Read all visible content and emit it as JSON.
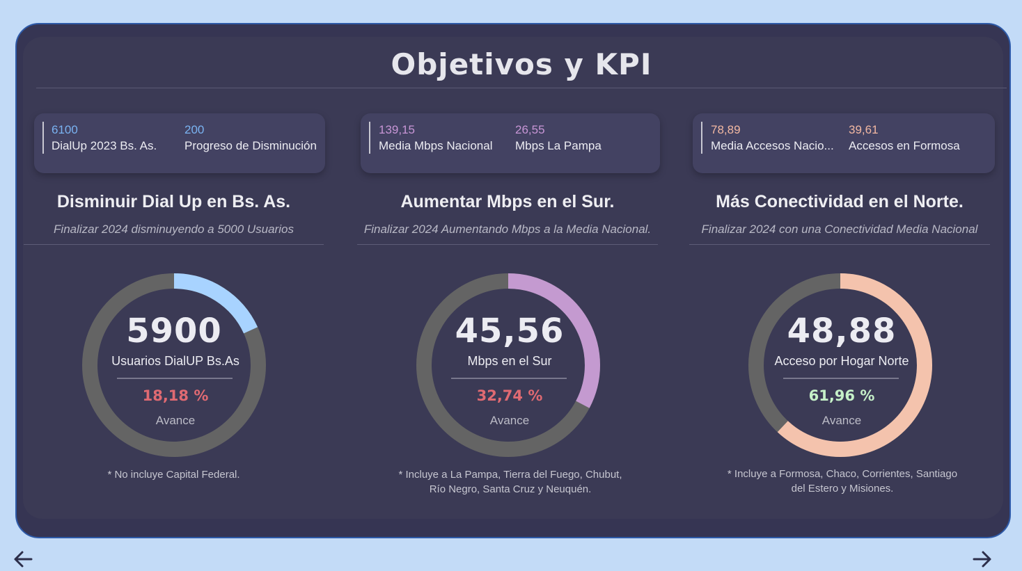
{
  "header": {
    "title": "Objetivos y KPI"
  },
  "colors": {
    "grey_ring": "#646464"
  },
  "columns": [
    {
      "kpis": [
        {
          "value": "6100",
          "label": "DialUp 2023 Bs. As."
        },
        {
          "value": "200",
          "label": "Progreso de Disminución"
        }
      ],
      "title": "Disminuir Dial Up en Bs. As.",
      "subtitle": "Finalizar 2024 disminuyendo a 5000 Usuarios",
      "gauge": {
        "value": "5900",
        "label": "Usuarios DialUP Bs.As",
        "percent": "18,18 %",
        "percent_caption": "Avance",
        "progress_fraction": 0.1818,
        "arc_color": "#a8d3ff",
        "percent_color": "#e06a72"
      },
      "note": [
        "* No incluye Capital Federal."
      ],
      "accent": "#7ab3f2"
    },
    {
      "kpis": [
        {
          "value": "139,15",
          "label": "Media Mbps Nacional"
        },
        {
          "value": "26,55",
          "label": "Mbps La Pampa"
        }
      ],
      "title": "Aumentar Mbps en el Sur.",
      "subtitle": "Finalizar 2024 Aumentando Mbps a la Media Nacional.",
      "gauge": {
        "value": "45,56",
        "label": "Mbps en el Sur",
        "percent": "32,74 %",
        "percent_caption": "Avance",
        "progress_fraction": 0.3274,
        "arc_color": "#c49ad0",
        "percent_color": "#e06a72"
      },
      "note": [
        "* Incluye a La Pampa, Tierra del Fuego, Chubut,",
        "Río Negro, Santa Cruz y Neuquén."
      ],
      "accent": "#c896d6"
    },
    {
      "kpis": [
        {
          "value": "78,89",
          "label": "Media Accesos Nacio..."
        },
        {
          "value": "39,61",
          "label": "Accesos en Formosa"
        }
      ],
      "title": "Más Conectividad en el Norte.",
      "subtitle": "Finalizar 2024 con una Conectividad Media Nacional",
      "gauge": {
        "value": "48,88",
        "label": "Acceso por Hogar Norte",
        "percent": "61,96 %",
        "percent_caption": "Avance",
        "progress_fraction": 0.6196,
        "arc_color": "#f4c3ad",
        "percent_color": "#c5f0c8"
      },
      "note": [
        "* Incluye a Formosa, Chaco, Corrientes, Santiago",
        "del Estero y Misiones."
      ],
      "accent": "#f2b8a2"
    }
  ],
  "nav": {
    "back_icon": "arrow-left-icon",
    "forward_icon": "arrow-right-icon"
  }
}
